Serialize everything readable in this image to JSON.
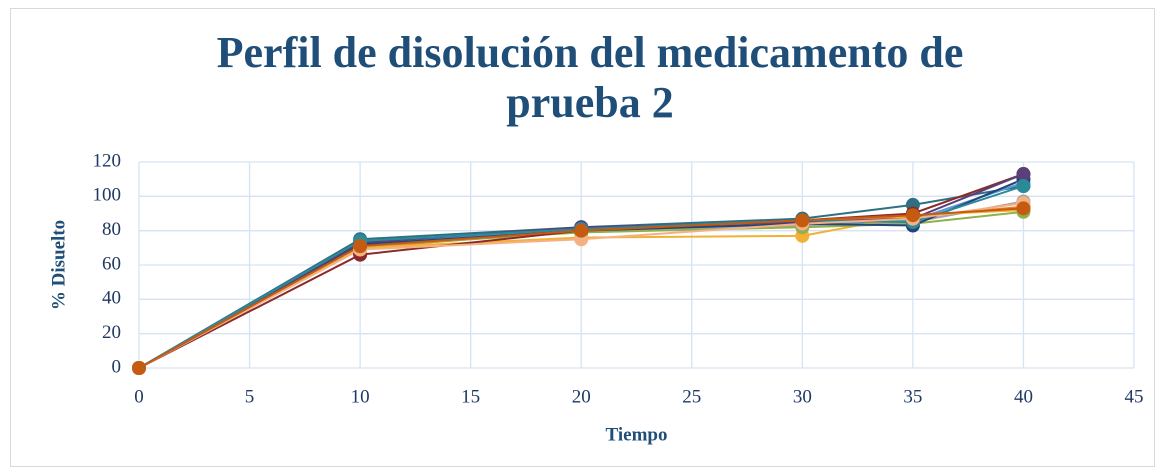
{
  "chart_data": {
    "type": "line",
    "title": "Perfil de disolución del medicamento de prueba 2",
    "xlabel": "Tiempo",
    "ylabel": "% Disuelto",
    "x": [
      0,
      10,
      20,
      30,
      35,
      40
    ],
    "xlim": [
      0,
      45
    ],
    "xticks": [
      0,
      5,
      10,
      15,
      20,
      25,
      30,
      35,
      40,
      45
    ],
    "ylim": [
      0,
      120
    ],
    "yticks": [
      0,
      20,
      40,
      60,
      80,
      100,
      120
    ],
    "grid": true,
    "series": [
      {
        "color": "#2e6f82",
        "values": [
          0,
          75,
          82,
          87,
          95,
          106
        ]
      },
      {
        "color": "#ed7d31",
        "values": [
          0,
          70,
          80,
          85,
          88,
          94
        ]
      },
      {
        "color": "#a5a5a5",
        "values": [
          0,
          72,
          79,
          83,
          85,
          97
        ]
      },
      {
        "color": "#f2b134",
        "values": [
          0,
          70,
          76,
          77,
          89,
          92
        ]
      },
      {
        "color": "#5b9bd5",
        "values": [
          0,
          73,
          80,
          84,
          86,
          108
        ]
      },
      {
        "color": "#8fb04a",
        "values": [
          0,
          71,
          79,
          82,
          84,
          91
        ]
      },
      {
        "color": "#264478",
        "values": [
          0,
          72,
          80,
          84,
          83,
          110
        ]
      },
      {
        "color": "#8b2a2a",
        "values": [
          0,
          66,
          80,
          86,
          90,
          113
        ]
      },
      {
        "color": "#5a3f7a",
        "values": [
          0,
          73,
          82,
          85,
          87,
          113
        ]
      },
      {
        "color": "#2b8a9a",
        "values": [
          0,
          74,
          81,
          86,
          85,
          106
        ]
      },
      {
        "color": "#f4b183",
        "values": [
          0,
          69,
          75,
          84,
          87,
          96
        ]
      },
      {
        "color": "#c55a11",
        "values": [
          0,
          71,
          80,
          86,
          89,
          93
        ]
      }
    ]
  }
}
